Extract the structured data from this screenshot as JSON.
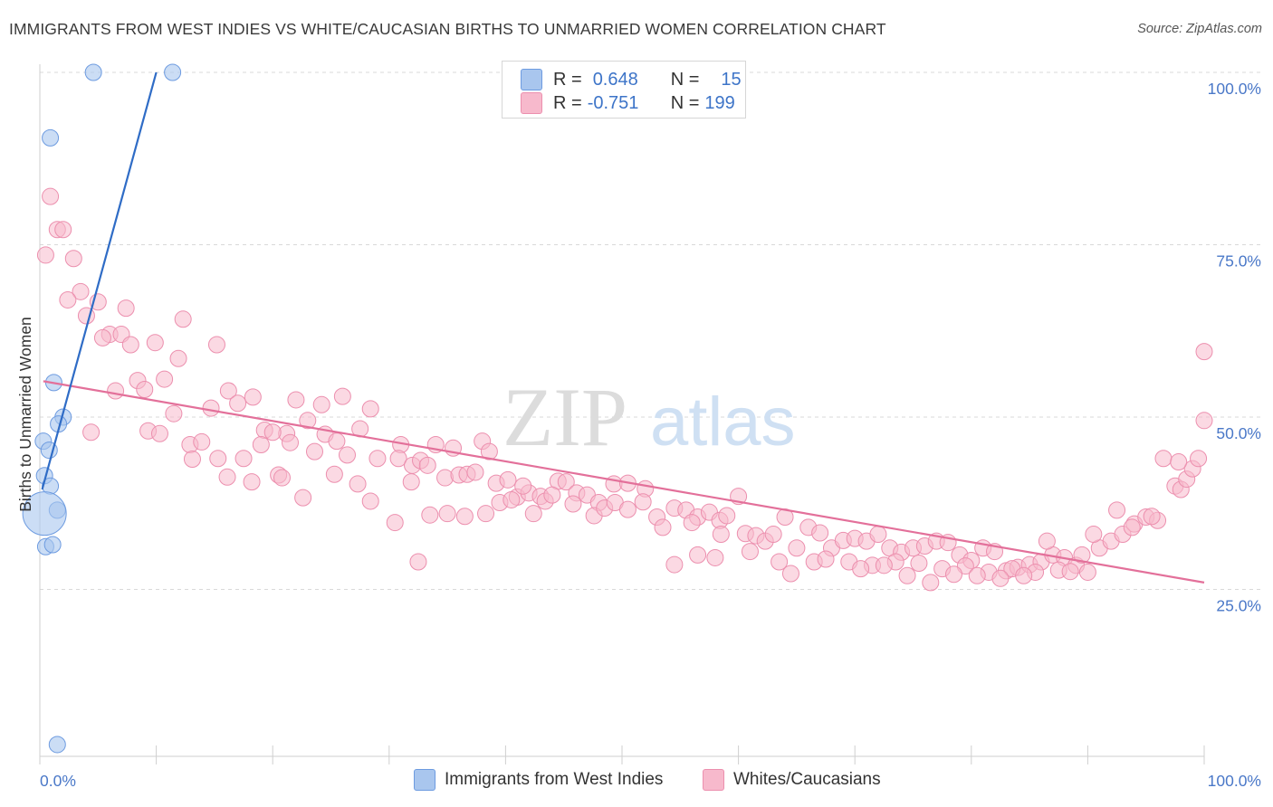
{
  "header": {
    "title": "IMMIGRANTS FROM WEST INDIES VS WHITE/CAUCASIAN BIRTHS TO UNMARRIED WOMEN CORRELATION CHART",
    "source": "Source: ZipAtlas.com"
  },
  "watermark": {
    "zip": "ZIP",
    "atlas": "atlas"
  },
  "legend": {
    "rows": [
      {
        "r_label": "R =",
        "r_value": "0.648",
        "n_label": "N =",
        "n_value": "15",
        "color": "#a9c6ee",
        "stroke": "#6d9be0"
      },
      {
        "r_label": "R =",
        "r_value": "-0.751",
        "n_label": "N =",
        "n_value": "199",
        "color": "#f7b9cc",
        "stroke": "#ec8fae"
      }
    ]
  },
  "chart_data": {
    "type": "scatter",
    "title": "IMMIGRANTS FROM WEST INDIES VS WHITE/CAUCASIAN BIRTHS TO UNMARRIED WOMEN CORRELATION CHART",
    "xlabel": "",
    "ylabel": "Births to Unmarried Women",
    "xlim": [
      0,
      100
    ],
    "ylim": [
      0,
      102
    ],
    "x_tick_labels": [
      "0.0%",
      "100.0%"
    ],
    "y_tick_labels": [
      "25.0%",
      "50.0%",
      "75.0%",
      "100.0%"
    ],
    "y_tick_values": [
      25,
      50,
      75,
      100
    ],
    "grid": "horizontal dashed",
    "legend_position": "top-center",
    "series": [
      {
        "name": "Immigrants from West Indies",
        "color": "#a9c6ee",
        "stroke": "#6d9be0",
        "line_color": "#2f6cc6",
        "trend": {
          "x": [
            0.2,
            10.0
          ],
          "y": [
            39.5,
            100
          ]
        },
        "points": [
          [
            4.6,
            100
          ],
          [
            11.4,
            100
          ],
          [
            0.9,
            90.5
          ],
          [
            1.2,
            55.0
          ],
          [
            2.0,
            50.0
          ],
          [
            1.6,
            49.0
          ],
          [
            0.3,
            46.5
          ],
          [
            0.8,
            45.2
          ],
          [
            0.4,
            41.5
          ],
          [
            0.9,
            40.0
          ],
          [
            1.5,
            36.5
          ],
          [
            0.4,
            36.0
          ],
          [
            0.5,
            31.2
          ],
          [
            1.1,
            31.5
          ],
          [
            1.5,
            2.5
          ]
        ],
        "sizes": [
          9,
          9,
          9,
          9,
          9,
          9,
          9,
          9,
          9,
          9,
          9,
          24,
          9,
          9,
          9
        ]
      },
      {
        "name": "Whites/Caucasians",
        "color": "#f7b9cc",
        "stroke": "#ec8fae",
        "line_color": "#e3709a",
        "trend": {
          "x": [
            0.3,
            100.0
          ],
          "y": [
            55.2,
            26.0
          ]
        },
        "points": [
          [
            0.9,
            82.0
          ],
          [
            1.5,
            77.2
          ],
          [
            2.0,
            77.2
          ],
          [
            0.5,
            73.5
          ],
          [
            2.9,
            73.0
          ],
          [
            3.5,
            68.2
          ],
          [
            2.4,
            67.0
          ],
          [
            4.0,
            64.7
          ],
          [
            5.0,
            66.7
          ],
          [
            7.4,
            65.8
          ],
          [
            6.0,
            62.0
          ],
          [
            5.4,
            61.5
          ],
          [
            7.0,
            62.0
          ],
          [
            7.8,
            60.5
          ],
          [
            9.9,
            60.8
          ],
          [
            12.3,
            64.2
          ],
          [
            15.2,
            60.5
          ],
          [
            11.9,
            58.5
          ],
          [
            8.4,
            55.3
          ],
          [
            10.7,
            55.5
          ],
          [
            6.5,
            53.8
          ],
          [
            9.0,
            54.0
          ],
          [
            16.2,
            53.8
          ],
          [
            14.7,
            51.3
          ],
          [
            18.3,
            52.9
          ],
          [
            17.0,
            52.0
          ],
          [
            11.5,
            50.5
          ],
          [
            22.0,
            52.5
          ],
          [
            24.2,
            51.8
          ],
          [
            26.0,
            53.0
          ],
          [
            28.4,
            51.2
          ],
          [
            4.4,
            47.8
          ],
          [
            9.3,
            48.0
          ],
          [
            10.3,
            47.6
          ],
          [
            19.3,
            48.1
          ],
          [
            21.2,
            47.6
          ],
          [
            20.0,
            47.8
          ],
          [
            23.0,
            49.5
          ],
          [
            24.5,
            47.5
          ],
          [
            25.5,
            46.5
          ],
          [
            27.5,
            48.3
          ],
          [
            12.9,
            46.0
          ],
          [
            13.9,
            46.4
          ],
          [
            17.5,
            44.0
          ],
          [
            19.0,
            46.0
          ],
          [
            21.5,
            46.3
          ],
          [
            23.6,
            45.0
          ],
          [
            26.4,
            44.5
          ],
          [
            29.0,
            44.0
          ],
          [
            31.0,
            46.0
          ],
          [
            34.0,
            46.0
          ],
          [
            35.5,
            45.5
          ],
          [
            38.0,
            46.5
          ],
          [
            38.6,
            45.0
          ],
          [
            13.1,
            43.9
          ],
          [
            15.3,
            44.0
          ],
          [
            16.1,
            41.3
          ],
          [
            20.5,
            41.6
          ],
          [
            20.8,
            41.2
          ],
          [
            18.2,
            40.6
          ],
          [
            25.3,
            41.7
          ],
          [
            27.3,
            40.3
          ],
          [
            30.8,
            44.0
          ],
          [
            32.0,
            43.0
          ],
          [
            32.7,
            43.7
          ],
          [
            33.3,
            43.0
          ],
          [
            34.8,
            41.2
          ],
          [
            36.0,
            41.6
          ],
          [
            36.7,
            41.7
          ],
          [
            37.4,
            42.0
          ],
          [
            31.9,
            40.6
          ],
          [
            39.2,
            40.4
          ],
          [
            40.2,
            40.9
          ],
          [
            41.0,
            38.4
          ],
          [
            42.0,
            39.0
          ],
          [
            43.0,
            38.5
          ],
          [
            44.5,
            40.7
          ],
          [
            45.2,
            40.6
          ],
          [
            46.1,
            39.0
          ],
          [
            47.0,
            38.7
          ],
          [
            48.0,
            37.6
          ],
          [
            49.3,
            40.3
          ],
          [
            50.5,
            40.4
          ],
          [
            52.0,
            39.6
          ],
          [
            28.4,
            37.8
          ],
          [
            22.6,
            38.3
          ],
          [
            30.5,
            34.7
          ],
          [
            38.3,
            36.0
          ],
          [
            39.5,
            37.6
          ],
          [
            40.5,
            38.0
          ],
          [
            42.4,
            36.0
          ],
          [
            43.4,
            37.8
          ],
          [
            44.0,
            38.7
          ],
          [
            45.8,
            37.4
          ],
          [
            47.6,
            35.7
          ],
          [
            48.5,
            36.8
          ],
          [
            49.4,
            37.6
          ],
          [
            50.5,
            36.6
          ],
          [
            51.8,
            37.7
          ],
          [
            53.0,
            35.5
          ],
          [
            54.5,
            36.8
          ],
          [
            55.5,
            36.5
          ],
          [
            56.5,
            35.5
          ],
          [
            57.5,
            36.2
          ],
          [
            58.4,
            35.0
          ],
          [
            59.0,
            35.7
          ],
          [
            60.0,
            38.5
          ],
          [
            35.0,
            36.0
          ],
          [
            33.5,
            35.8
          ],
          [
            41.5,
            40.0
          ],
          [
            53.5,
            34.0
          ],
          [
            56.0,
            34.7
          ],
          [
            58.5,
            33.0
          ],
          [
            60.6,
            33.1
          ],
          [
            61.5,
            32.8
          ],
          [
            62.3,
            32.0
          ],
          [
            63.0,
            33.0
          ],
          [
            64.0,
            35.5
          ],
          [
            65.0,
            31.0
          ],
          [
            66.0,
            34.0
          ],
          [
            67.0,
            33.2
          ],
          [
            68.0,
            31.0
          ],
          [
            69.0,
            32.1
          ],
          [
            70.0,
            32.4
          ],
          [
            71.0,
            32.0
          ],
          [
            72.0,
            33.0
          ],
          [
            73.0,
            31.0
          ],
          [
            74.0,
            30.4
          ],
          [
            75.0,
            31.0
          ],
          [
            76.0,
            31.3
          ],
          [
            77.0,
            32.0
          ],
          [
            78.0,
            31.8
          ],
          [
            79.0,
            30.0
          ],
          [
            80.0,
            29.2
          ],
          [
            81.0,
            31.0
          ],
          [
            82.0,
            30.5
          ],
          [
            83.0,
            27.7
          ],
          [
            84.0,
            28.2
          ],
          [
            85.0,
            28.6
          ],
          [
            86.0,
            29.0
          ],
          [
            87.0,
            30.0
          ],
          [
            88.0,
            29.6
          ],
          [
            89.0,
            28.5
          ],
          [
            90.0,
            27.5
          ],
          [
            63.5,
            29.0
          ],
          [
            66.5,
            29.0
          ],
          [
            69.5,
            29.0
          ],
          [
            71.5,
            28.5
          ],
          [
            73.5,
            29.0
          ],
          [
            75.5,
            28.8
          ],
          [
            77.5,
            28.0
          ],
          [
            79.5,
            28.4
          ],
          [
            81.5,
            27.5
          ],
          [
            83.5,
            28.0
          ],
          [
            85.5,
            27.5
          ],
          [
            87.5,
            27.8
          ],
          [
            89.5,
            30.0
          ],
          [
            91.0,
            31.0
          ],
          [
            92.0,
            32.0
          ],
          [
            93.0,
            33.0
          ],
          [
            94.0,
            34.5
          ],
          [
            95.0,
            35.5
          ],
          [
            96.0,
            35.0
          ],
          [
            58.0,
            29.6
          ],
          [
            61.0,
            30.5
          ],
          [
            64.5,
            27.3
          ],
          [
            67.5,
            29.4
          ],
          [
            70.5,
            28.0
          ],
          [
            72.5,
            28.5
          ],
          [
            74.5,
            27.0
          ],
          [
            76.5,
            26.0
          ],
          [
            78.5,
            27.2
          ],
          [
            80.5,
            27.0
          ],
          [
            82.5,
            26.6
          ],
          [
            84.5,
            27.0
          ],
          [
            86.5,
            32.0
          ],
          [
            88.5,
            27.6
          ],
          [
            90.5,
            33.0
          ],
          [
            92.5,
            36.5
          ],
          [
            93.8,
            34.0
          ],
          [
            95.5,
            35.6
          ],
          [
            96.5,
            44.0
          ],
          [
            97.5,
            40.0
          ],
          [
            98.0,
            39.5
          ],
          [
            98.5,
            41.0
          ],
          [
            99.0,
            42.5
          ],
          [
            99.5,
            44.0
          ],
          [
            97.8,
            43.5
          ],
          [
            100.0,
            49.5
          ],
          [
            100.0,
            59.5
          ],
          [
            32.5,
            29.0
          ],
          [
            54.5,
            28.6
          ],
          [
            56.5,
            30.0
          ],
          [
            36.5,
            35.6
          ]
        ]
      }
    ]
  },
  "bottom_legend": {
    "items": [
      {
        "label": "Immigrants from West Indies",
        "color": "#a9c6ee",
        "stroke": "#6d9be0"
      },
      {
        "label": "Whites/Caucasians",
        "color": "#f7b9cc",
        "stroke": "#ec8fae"
      }
    ]
  }
}
